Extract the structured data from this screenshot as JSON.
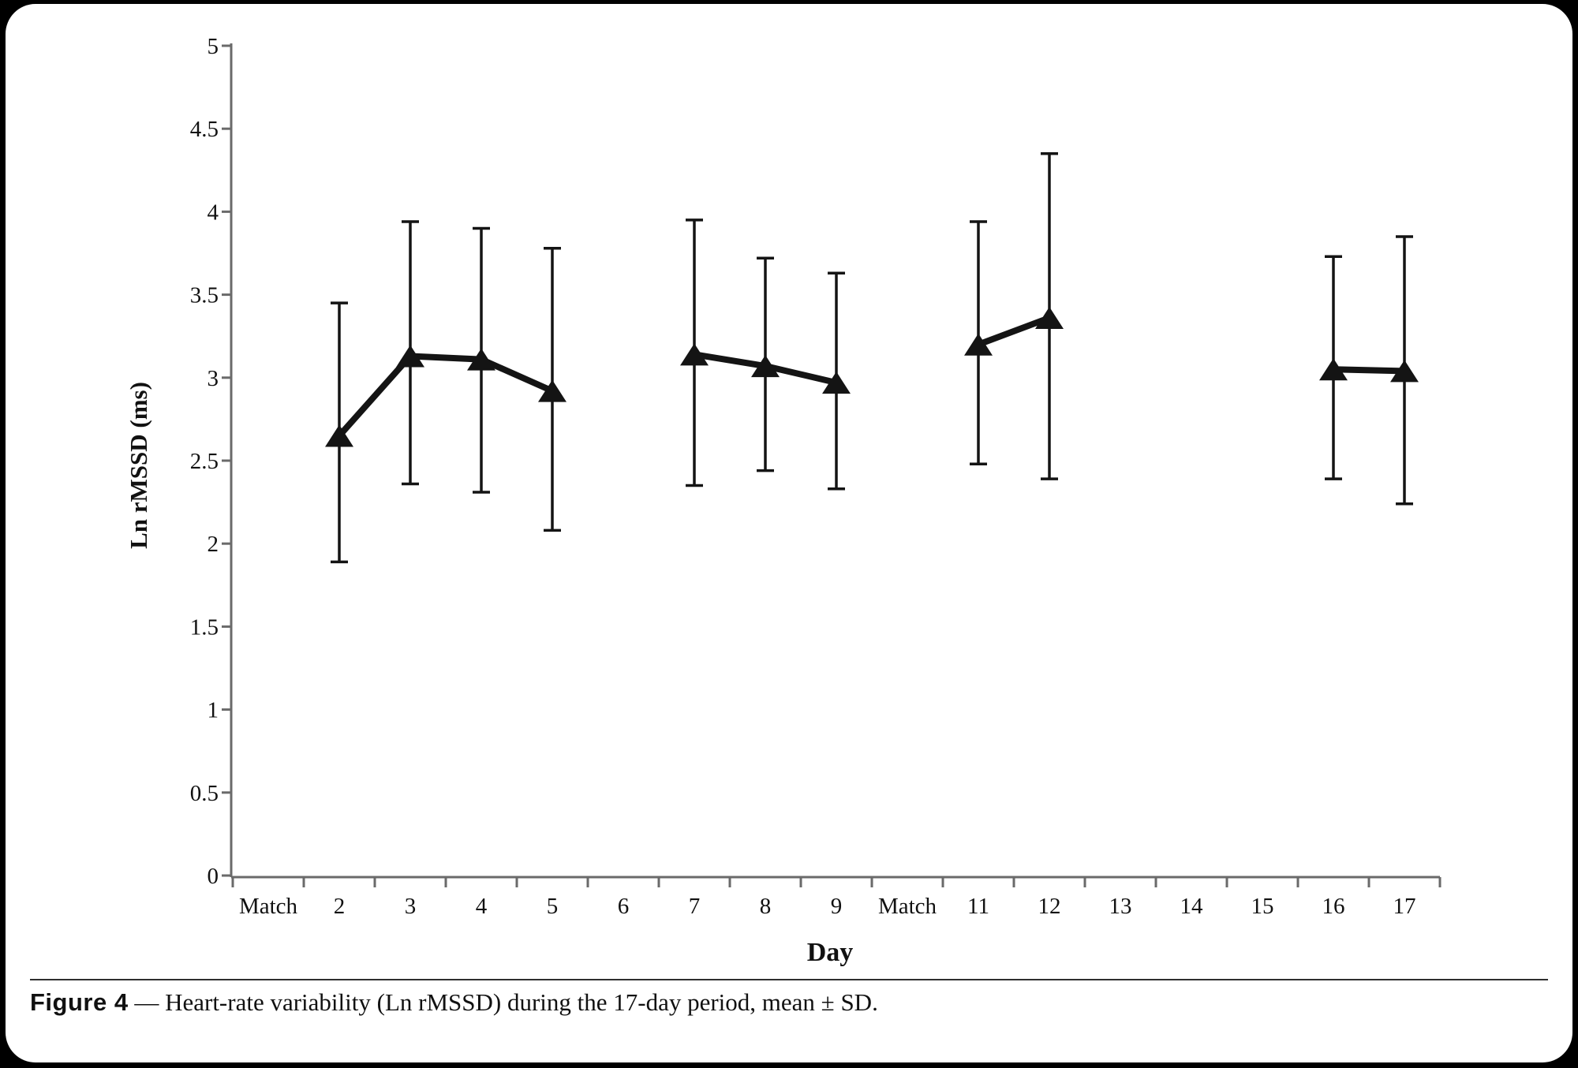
{
  "chart_data": {
    "type": "line",
    "title": "",
    "xlabel": "Day",
    "ylabel": "Ln rMSSD (ms)",
    "ylim": [
      0,
      5
    ],
    "ytick_step": 0.5,
    "ytick_labels": [
      "0",
      "0.5",
      "1",
      "1.5",
      "2",
      "2.5",
      "3",
      "3.5",
      "4",
      "4.5",
      "5"
    ],
    "categories": [
      "Match",
      "2",
      "3",
      "4",
      "5",
      "6",
      "7",
      "8",
      "9",
      "Match",
      "11",
      "12",
      "13",
      "14",
      "15",
      "16",
      "17"
    ],
    "grid": false,
    "legend_position": "none",
    "marker": "filled-triangle",
    "series": [
      {
        "name": "Ln rMSSD (mean ± SD)",
        "color": "#141414",
        "points": [
          {
            "category": "2",
            "category_index": 1,
            "mean": 2.65,
            "upper": 3.45,
            "lower": 1.89
          },
          {
            "category": "3",
            "category_index": 2,
            "mean": 3.13,
            "upper": 3.94,
            "lower": 2.36
          },
          {
            "category": "4",
            "category_index": 3,
            "mean": 3.11,
            "upper": 3.9,
            "lower": 2.31
          },
          {
            "category": "5",
            "category_index": 4,
            "mean": 2.92,
            "upper": 3.78,
            "lower": 2.08
          },
          {
            "category": "7",
            "category_index": 6,
            "mean": 3.14,
            "upper": 3.95,
            "lower": 2.35
          },
          {
            "category": "8",
            "category_index": 7,
            "mean": 3.07,
            "upper": 3.72,
            "lower": 2.44
          },
          {
            "category": "9",
            "category_index": 8,
            "mean": 2.97,
            "upper": 3.63,
            "lower": 2.33
          },
          {
            "category": "11",
            "category_index": 10,
            "mean": 3.2,
            "upper": 3.94,
            "lower": 2.48
          },
          {
            "category": "12",
            "category_index": 11,
            "mean": 3.36,
            "upper": 4.35,
            "lower": 2.39
          },
          {
            "category": "16",
            "category_index": 15,
            "mean": 3.05,
            "upper": 3.73,
            "lower": 2.39
          },
          {
            "category": "17",
            "category_index": 16,
            "mean": 3.04,
            "upper": 3.85,
            "lower": 2.24
          }
        ],
        "segments": [
          [
            0,
            1,
            2,
            3
          ],
          [
            4,
            5,
            6
          ],
          [
            7,
            8
          ],
          [
            9,
            10
          ]
        ]
      }
    ]
  },
  "caption": {
    "label": "Figure 4",
    "text": "— Heart-rate variability (Ln rMSSD) during the 17-day period, mean ± SD."
  }
}
